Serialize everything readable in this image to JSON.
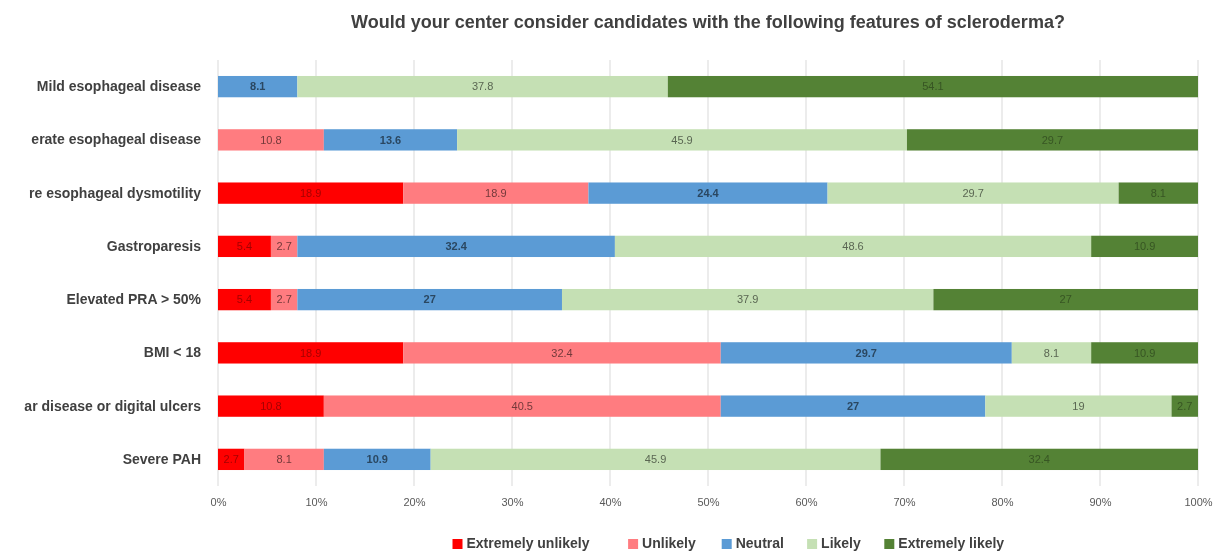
{
  "chart_data": {
    "type": "bar",
    "orientation": "horizontal",
    "stacked": true,
    "title": "Would your center consider candidates with the following features of scleroderma?",
    "categories": [
      "Mild esophageal disease",
      "erate esophageal disease",
      "re esophageal dysmotility",
      "Gastroparesis",
      "Elevated PRA > 50%",
      "BMI < 18",
      "ar disease or digital ulcers",
      "Severe PAH"
    ],
    "series": [
      {
        "name": "Extremely unlikely",
        "color": "#ff0000",
        "values": [
          null,
          null,
          18.9,
          5.4,
          5.4,
          18.9,
          10.8,
          2.7
        ]
      },
      {
        "name": "Unlikely",
        "color": "#ff7c80",
        "values": [
          null,
          10.8,
          18.9,
          2.7,
          2.7,
          32.4,
          40.5,
          8.1
        ]
      },
      {
        "name": "Neutral",
        "color": "#5b9bd5",
        "values": [
          8.1,
          13.6,
          24.4,
          32.4,
          27,
          29.7,
          27,
          10.9
        ]
      },
      {
        "name": "Likely",
        "color": "#c5e0b4",
        "values": [
          37.8,
          45.9,
          29.7,
          48.6,
          37.9,
          8.1,
          19,
          45.9
        ]
      },
      {
        "name": "Extremely likely",
        "color": "#548235",
        "values": [
          54.1,
          29.7,
          8.1,
          10.9,
          27,
          10.9,
          2.7,
          32.4
        ]
      }
    ],
    "xlim": [
      0,
      100
    ],
    "xticks": [
      {
        "value": 0,
        "label": "0%"
      },
      {
        "value": 10,
        "label": "10%"
      },
      {
        "value": 20,
        "label": "20%"
      },
      {
        "value": 30,
        "label": "30%"
      },
      {
        "value": 40,
        "label": "40%"
      },
      {
        "value": 50,
        "label": "50%"
      },
      {
        "value": 60,
        "label": "60%"
      },
      {
        "value": 70,
        "label": "70%"
      },
      {
        "value": 80,
        "label": "80%"
      },
      {
        "value": 90,
        "label": "90%"
      },
      {
        "value": 100,
        "label": "100%"
      }
    ],
    "grid": "x",
    "legend": "bottom",
    "data_labels": true
  }
}
